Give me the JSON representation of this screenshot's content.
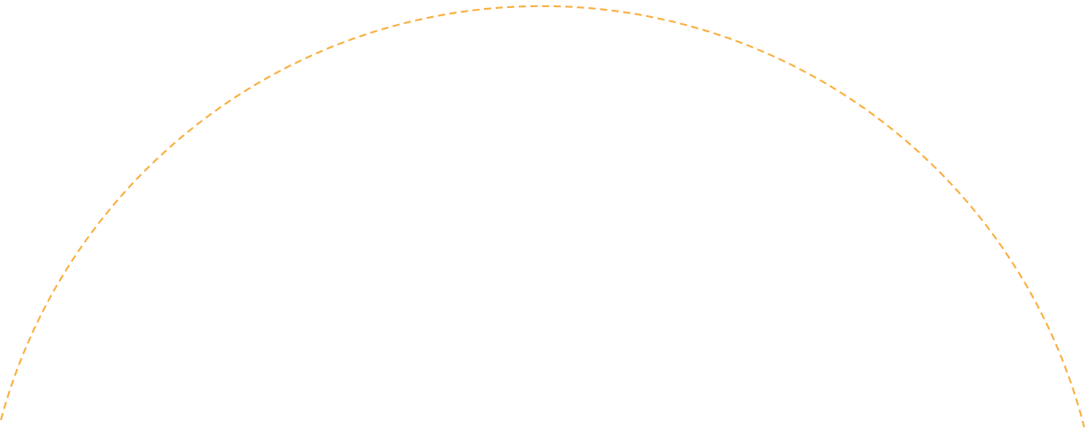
{
  "arc": {
    "stroke_color": "#F9AE3D",
    "style": "dashed"
  }
}
